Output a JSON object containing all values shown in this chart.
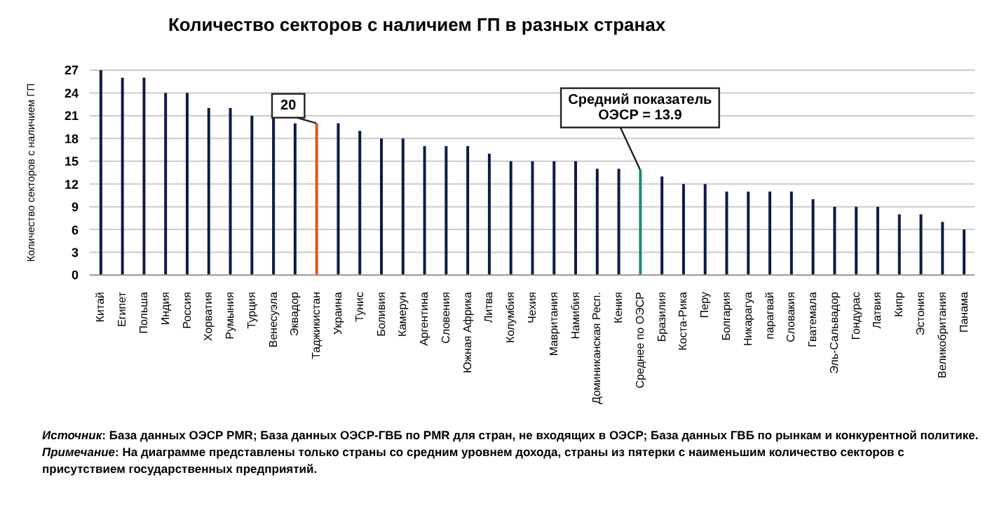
{
  "chart_data": {
    "type": "bar",
    "title": "Количество секторов с наличием ГП в разных странах",
    "ylabel": "Количество секторов с наличием ГП",
    "categories": [
      "Китай",
      "Египет",
      "Польша",
      "Индия",
      "Россия",
      "Хорватия",
      "Румыния",
      "Турция",
      "Венесуэла",
      "Эквадор",
      "Таджикистан",
      "Украина",
      "Тунис",
      "Боливия",
      "Камерун",
      "Аргентина",
      "Словения",
      "Южная Африка",
      "Литва",
      "Колумбия",
      "Чехия",
      "Мавритания",
      "Намибия",
      "Доминиканская Респ.",
      "Кения",
      "Среднее по ОЭСР",
      "Бразилия",
      "Коста-Рика",
      "Перу",
      "Болгария",
      "Никарагуа",
      "парагвай",
      "Словакия",
      "Гватемала",
      "Эль-Сальвадор",
      "Гондурас",
      "Латвия",
      "Кипр",
      "Эстония",
      "Великобритания",
      "Панама"
    ],
    "values": [
      27,
      26,
      26,
      24,
      24,
      22,
      22,
      21,
      21,
      20,
      20,
      20,
      19,
      18,
      18,
      17,
      17,
      17,
      16,
      15,
      15,
      15,
      15,
      14,
      14,
      13.9,
      13,
      12,
      12,
      11,
      11,
      11,
      11,
      10,
      9,
      9,
      9,
      8,
      8,
      7,
      6
    ],
    "colors": [
      "#0d1b45",
      "#0d1b45",
      "#0d1b45",
      "#0d1b45",
      "#0d1b45",
      "#0d1b45",
      "#0d1b45",
      "#0d1b45",
      "#0d1b45",
      "#0d1b45",
      "#e8501e",
      "#0d1b45",
      "#0d1b45",
      "#0d1b45",
      "#0d1b45",
      "#0d1b45",
      "#0d1b45",
      "#0d1b45",
      "#0d1b45",
      "#0d1b45",
      "#0d1b45",
      "#0d1b45",
      "#0d1b45",
      "#0d1b45",
      "#0d1b45",
      "#1a8a7a",
      "#0d1b45",
      "#0d1b45",
      "#0d1b45",
      "#0d1b45",
      "#0d1b45",
      "#0d1b45",
      "#0d1b45",
      "#0d1b45",
      "#0d1b45",
      "#0d1b45",
      "#0d1b45",
      "#0d1b45",
      "#0d1b45",
      "#0d1b45",
      "#0d1b45"
    ],
    "ylim": [
      0,
      27
    ],
    "yticks": [
      0,
      3,
      6,
      9,
      12,
      15,
      18,
      21,
      24,
      27
    ],
    "grid": "y",
    "annotations": [
      {
        "text": "20",
        "x": "Таджикистан",
        "y": 20
      },
      {
        "text": "Средний показатель\nОЭСР = 13.9",
        "x": "Среднее по ОЭСР",
        "y": 13.9
      },
      "Источник: База данных ОЭСР PMR; База данных ОЭСР-ГВБ по PMR для стран, не входящих в ОЭСР; База данных ГВБ по рынкам и конкурентной политике.",
      "Примечание: На диаграмме представлены только страны со средним уровнем дохода, страны из пятерки с наименьшим количество секторов с присутствием государственных предприятий."
    ]
  }
}
